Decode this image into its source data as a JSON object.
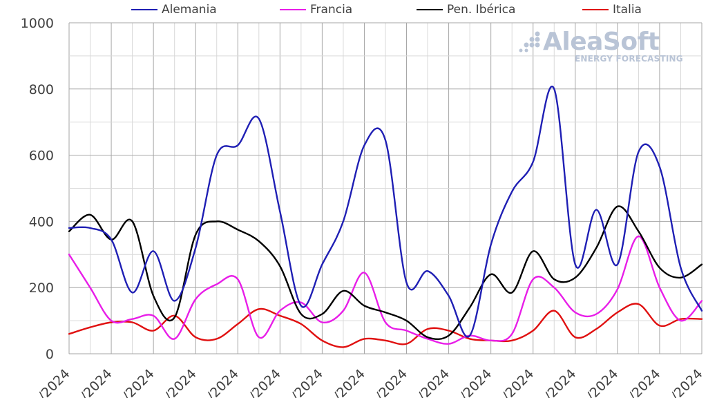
{
  "chart_data": {
    "type": "line",
    "title": "",
    "xlabel": "",
    "ylabel": "",
    "ylim": [
      0,
      1000
    ],
    "yticks": [
      0,
      200,
      400,
      600,
      800,
      1000
    ],
    "grid": true,
    "legend_position": "top",
    "x_tick_labels": [
      "/2024",
      "/2024",
      "/2024",
      "/2024",
      "/2024",
      "/2024",
      "/2024",
      "/2024",
      "/2024",
      "/2024",
      "/2024",
      "/2024",
      "/2024",
      "/2024",
      "/2024",
      "/2024"
    ],
    "series": [
      {
        "name": "Alemania",
        "color": "#1f1fb4",
        "values": [
          380,
          380,
          345,
          185,
          310,
          160,
          320,
          600,
          630,
          710,
          430,
          145,
          270,
          400,
          630,
          645,
          215,
          250,
          175,
          55,
          330,
          490,
          580,
          800,
          270,
          435,
          270,
          610,
          565,
          260,
          130
        ]
      },
      {
        "name": "Francia",
        "color": "#e81ee8",
        "values": [
          300,
          200,
          100,
          105,
          115,
          45,
          165,
          210,
          225,
          50,
          130,
          155,
          95,
          130,
          245,
          95,
          70,
          45,
          30,
          55,
          40,
          60,
          225,
          200,
          125,
          120,
          195,
          355,
          200,
          100,
          160
        ]
      },
      {
        "name": "Pen. Ibérica",
        "color": "#000000",
        "values": [
          370,
          420,
          345,
          400,
          175,
          110,
          360,
          400,
          375,
          340,
          265,
          120,
          120,
          190,
          145,
          125,
          100,
          50,
          55,
          140,
          240,
          185,
          310,
          225,
          230,
          320,
          445,
          370,
          260,
          230,
          270
        ]
      },
      {
        "name": "Italia",
        "color": "#e01010",
        "values": [
          60,
          80,
          95,
          95,
          70,
          115,
          50,
          45,
          90,
          135,
          115,
          90,
          40,
          20,
          45,
          40,
          30,
          75,
          70,
          45,
          40,
          40,
          70,
          130,
          50,
          75,
          125,
          150,
          85,
          105,
          105
        ]
      }
    ]
  },
  "logo": {
    "name": "AleaSoft",
    "tagline": "ENERGY FORECASTING"
  }
}
